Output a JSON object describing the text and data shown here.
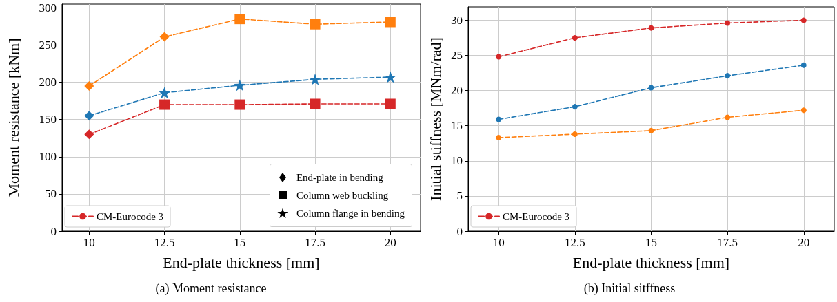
{
  "chart_data": [
    {
      "type": "line",
      "title": "(a) Moment resistance",
      "annotations": [
        "End-plate in bending",
        "Column web buckling",
        "Column flange in bending"
      ],
      "xlabel": "End-plate thickness [mm]",
      "ylabel": "Moment resistance [kNm]",
      "xlim": [
        9.1,
        21
      ],
      "xticks": [
        10,
        12.5,
        15,
        17.5,
        20
      ],
      "ylim": [
        0,
        305
      ],
      "yticks": [
        0,
        50,
        100,
        150,
        200,
        250,
        300
      ],
      "grid": true,
      "legend": "bottom",
      "line_style": "dashed",
      "marker": "none",
      "x": [
        10,
        12.5,
        15,
        17.5,
        20
      ],
      "series": [
        {
          "color": "#ff7f0e",
          "values": [
            195,
            261,
            285,
            278,
            281
          ]
        },
        {
          "color": "#1f77b4",
          "values": [
            155,
            186,
            196,
            204,
            207
          ]
        },
        {
          "name": "CM-Eurocode 3",
          "color": "#d62728",
          "values": [
            130,
            170,
            170,
            171,
            171
          ]
        },
        {
          "type": "scatter",
          "marker": "diamond",
          "color": "#000000",
          "x": [
            10,
            12.5,
            10,
            10
          ],
          "values": [
            195,
            261,
            155,
            130
          ],
          "colors": [
            "#ff7f0e",
            "#ff7f0e",
            "#1f77b4",
            "#d62728"
          ]
        },
        {
          "type": "scatter",
          "marker": "square",
          "color": "#000000",
          "x": [
            15,
            17.5,
            20,
            12.5,
            15,
            17.5,
            20
          ],
          "values": [
            285,
            278,
            281,
            170,
            170,
            171,
            171
          ],
          "colors": [
            "#ff7f0e",
            "#ff7f0e",
            "#ff7f0e",
            "#d62728",
            "#d62728",
            "#d62728",
            "#d62728"
          ]
        },
        {
          "type": "scatter",
          "marker": "star",
          "color": "#000000",
          "x": [
            12.5,
            15,
            17.5,
            20
          ],
          "values": [
            186,
            196,
            204,
            207
          ],
          "colors": [
            "#1f77b4",
            "#1f77b4",
            "#1f77b4",
            "#1f77b4"
          ]
        }
      ]
    },
    {
      "type": "line",
      "title": "(b) Initial sitffness",
      "xlabel": "End-plate thickness [mm]",
      "ylabel": "Initial stiffness [MNm/rad]",
      "xlim": [
        9,
        21
      ],
      "xticks": [
        10,
        12.5,
        15,
        17.5,
        20
      ],
      "ylim": [
        0,
        31.9
      ],
      "yticks": [
        0,
        5,
        10,
        15,
        20,
        25,
        30
      ],
      "grid": true,
      "legend": "bottom left",
      "line_style": "dashed",
      "marker": "circle",
      "x": [
        10,
        12.5,
        15,
        17.5,
        20
      ],
      "series": [
        {
          "color": "#ff7f0e",
          "values": [
            13.3,
            13.8,
            14.3,
            16.2,
            17.2
          ]
        },
        {
          "color": "#1f77b4",
          "values": [
            15.9,
            17.7,
            20.4,
            22.1,
            23.6
          ]
        },
        {
          "name": "CM-Eurocode 3",
          "color": "#d62728",
          "values": [
            24.8,
            27.5,
            28.9,
            29.6,
            30.0
          ]
        }
      ]
    }
  ]
}
